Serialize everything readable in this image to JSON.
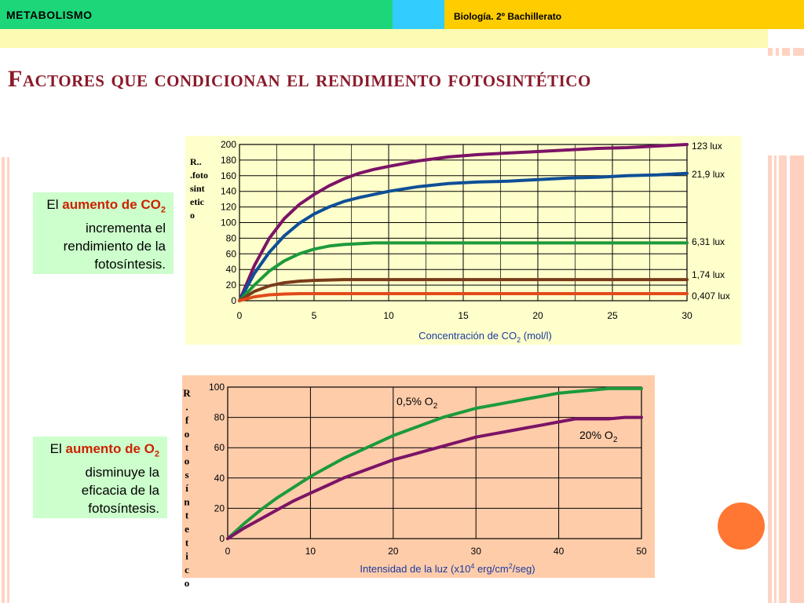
{
  "header": {
    "left_title": "METABOLISMO",
    "right_title": "Biología. 2º Bachillerato"
  },
  "slide_title": "Factores  que condicionan el rendimiento fotosintético",
  "note1": {
    "t1": "El ",
    "hl1": "aumento de CO",
    "hl1_sub": "2",
    "t2": " incrementa el rendimiento de la fotosíntesis."
  },
  "note2": {
    "t1": "El ",
    "hl1": "aumento de O",
    "hl1_sub": "2",
    "t2": " disminuye la eficacia de la fotosíntesis."
  },
  "chart_data": [
    {
      "type": "line",
      "title": "",
      "ylabel": "R.. .foto sint etic o",
      "xlabel": "Concentración de CO",
      "xlabel_sub": "2",
      "xlabel_tail": " (mol/l)",
      "xlim": [
        0,
        30
      ],
      "ylim": [
        0,
        200
      ],
      "xticks": [
        0,
        5,
        10,
        15,
        20,
        25,
        30
      ],
      "yticks": [
        0,
        20,
        40,
        60,
        80,
        100,
        120,
        140,
        160,
        180,
        200
      ],
      "series": [
        {
          "name": "123 lux",
          "color": "#7b1466",
          "x": [
            0,
            1,
            2,
            3,
            4,
            5,
            6,
            7,
            8,
            9,
            10,
            12,
            14,
            16,
            18,
            20,
            22,
            24,
            26,
            28,
            30
          ],
          "y": [
            0,
            45,
            80,
            105,
            123,
            136,
            147,
            156,
            163,
            168,
            172,
            179,
            184,
            187,
            189,
            191,
            193,
            195,
            196,
            198,
            200
          ]
        },
        {
          "name": "21,9 lux",
          "color": "#0e4f96",
          "x": [
            0,
            1,
            2,
            3,
            4,
            5,
            6,
            7,
            8,
            9,
            10,
            12,
            14,
            16,
            18,
            20,
            22,
            24,
            26,
            28,
            30
          ],
          "y": [
            0,
            35,
            62,
            83,
            99,
            111,
            120,
            127,
            132,
            136,
            140,
            146,
            150,
            152,
            153,
            155,
            157,
            158,
            160,
            161,
            163
          ]
        },
        {
          "name": "6,31 lux",
          "color": "#1c9a3c",
          "x": [
            0,
            1,
            2,
            3,
            4,
            5,
            6,
            7,
            8,
            9,
            10,
            12,
            15,
            20,
            25,
            30
          ],
          "y": [
            0,
            20,
            38,
            51,
            60,
            66,
            70,
            72,
            73,
            74,
            74,
            74,
            74,
            74,
            74,
            74
          ]
        },
        {
          "name": "1,74 lux",
          "color": "#7a3b1a",
          "x": [
            0,
            1,
            2,
            3,
            4,
            5,
            6,
            7,
            8,
            10,
            15,
            20,
            25,
            30
          ],
          "y": [
            0,
            12,
            19,
            23,
            25,
            26,
            26.5,
            27,
            27,
            27,
            27,
            27,
            27,
            27
          ]
        },
        {
          "name": "0,407 lux",
          "color": "#e24a1a",
          "x": [
            0,
            1,
            2,
            3,
            4,
            6,
            8,
            10,
            15,
            20,
            25,
            30
          ],
          "y": [
            0,
            5,
            7.5,
            8.5,
            9,
            9,
            9,
            9,
            9,
            9,
            9,
            9
          ]
        }
      ]
    },
    {
      "type": "line",
      "title": "",
      "ylabel": "R.fotosíntetico",
      "xlabel": "Intensidad de la luz (x10",
      "xlabel_sup": "4",
      "xlabel_mid": " erg/cm",
      "xlabel_sup2": "2",
      "xlabel_tail": "/seg)",
      "xlim": [
        0,
        50
      ],
      "ylim": [
        0,
        100
      ],
      "xticks": [
        0,
        10,
        20,
        30,
        40,
        50
      ],
      "yticks": [
        0,
        20,
        40,
        60,
        80,
        100
      ],
      "series": [
        {
          "name": "0,5% O",
          "name_sub": "2",
          "color": "#1c9a3c",
          "x": [
            0,
            2,
            4,
            6,
            8,
            10,
            12,
            14,
            16,
            18,
            20,
            22,
            24,
            26,
            28,
            30,
            32,
            34,
            36,
            38,
            40,
            42,
            44,
            46,
            48,
            50
          ],
          "y": [
            0,
            10,
            19,
            27,
            34,
            41,
            47,
            53,
            58,
            63,
            68,
            72,
            76,
            80,
            83,
            86,
            88,
            90,
            92,
            94,
            96,
            97,
            98,
            99,
            99,
            99
          ]
        },
        {
          "name": "20% O",
          "name_sub": "2",
          "color": "#7b1466",
          "x": [
            0,
            2,
            4,
            6,
            8,
            10,
            12,
            14,
            16,
            18,
            20,
            22,
            24,
            26,
            28,
            30,
            32,
            34,
            36,
            38,
            40,
            42,
            44,
            46,
            48,
            50
          ],
          "y": [
            0,
            7,
            13,
            19,
            25,
            30,
            35,
            40,
            44,
            48,
            52,
            55,
            58,
            61,
            64,
            67,
            69,
            71,
            73,
            75,
            77,
            79,
            79,
            79,
            80,
            80
          ]
        }
      ]
    }
  ]
}
